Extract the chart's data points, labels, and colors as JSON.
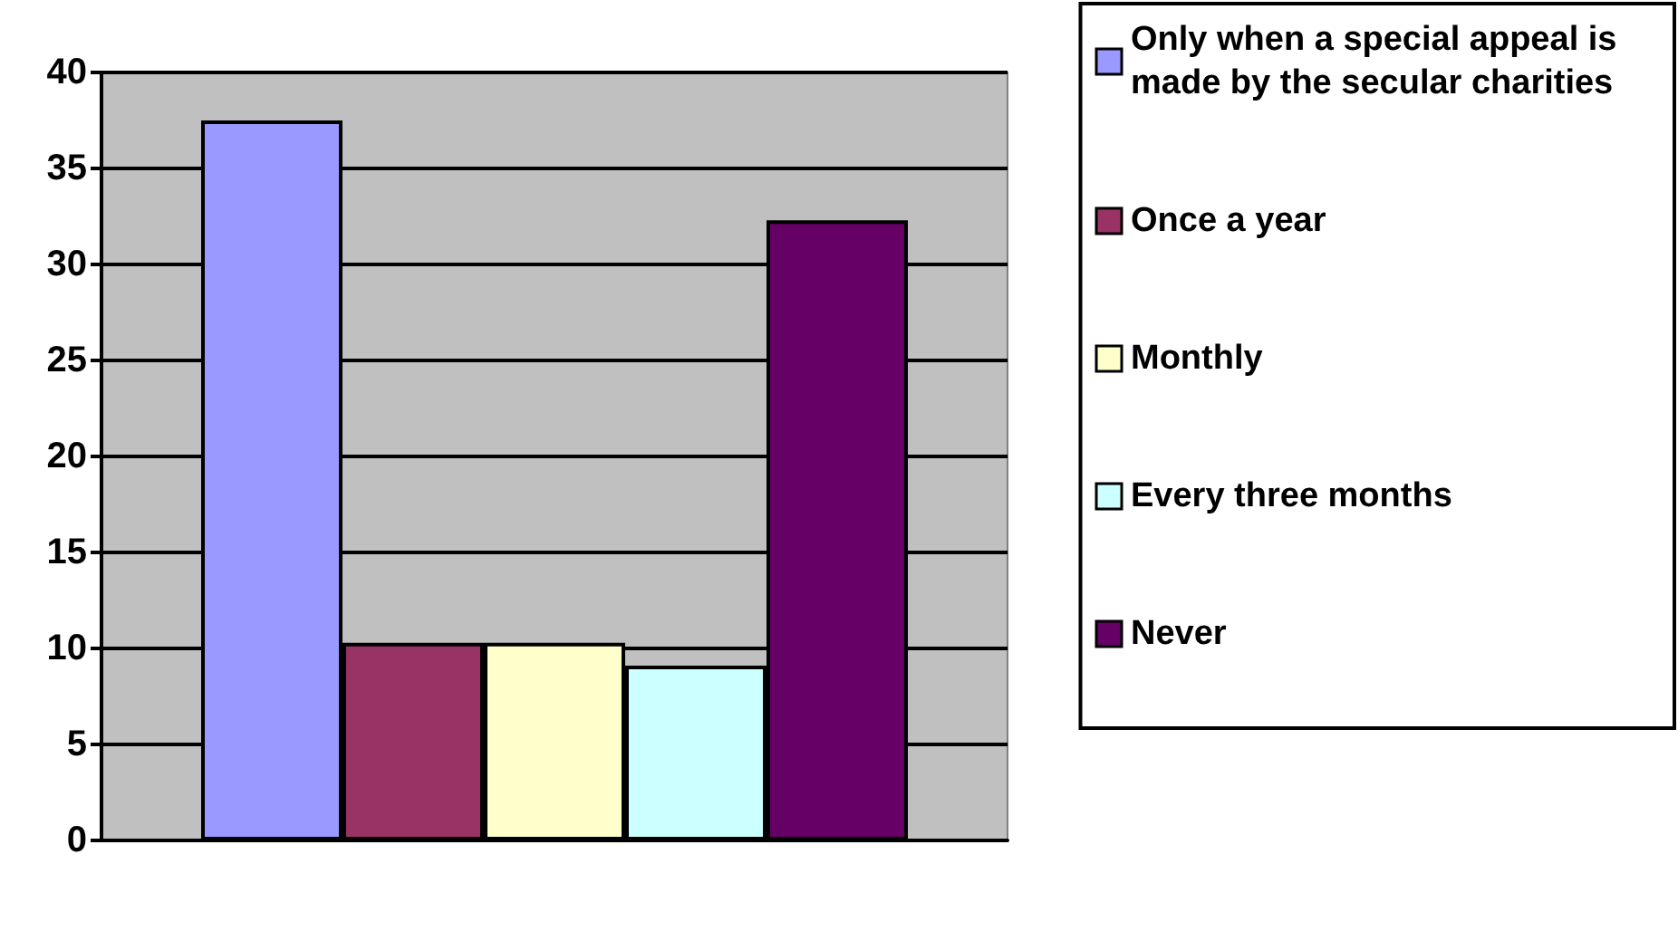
{
  "chart_data": {
    "type": "bar",
    "categories": [
      null
    ],
    "series": [
      {
        "name": "Only when a special appeal is made by the secular charities",
        "color": "#9999ff",
        "values": [
          37.5
        ]
      },
      {
        "name": "Once a year",
        "color": "#993366",
        "values": [
          10.3
        ]
      },
      {
        "name": "Monthly",
        "color": "#ffffcc",
        "values": [
          10.3
        ]
      },
      {
        "name": "Every three months",
        "color": "#ccffff",
        "values": [
          9.1
        ]
      },
      {
        "name": "Never",
        "color": "#660066",
        "values": [
          32.3
        ]
      }
    ],
    "ylim": [
      0,
      40
    ],
    "yticks": [
      0,
      5,
      10,
      15,
      20,
      25,
      30,
      35,
      40
    ],
    "grid": "y",
    "legend": "right"
  }
}
